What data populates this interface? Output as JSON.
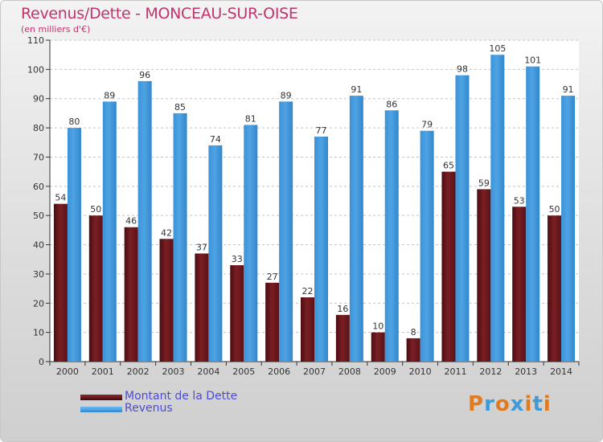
{
  "header": {
    "title": "Revenus/Dette - MONCEAU-SUR-OISE",
    "subtitle": "(en milliers d'€)"
  },
  "colors": {
    "dette": "#7a1f24",
    "revenus": "#4fa3e3",
    "title": "#c0336c",
    "legend_text": "#4b4bd6"
  },
  "legend": {
    "items": [
      {
        "label": "Montant de la Dette",
        "color": "#6b1a1f"
      },
      {
        "label": "Revenus",
        "color": "#4fa3e3"
      }
    ]
  },
  "logo": {
    "text": "Proxiti"
  },
  "chart_data": {
    "type": "bar",
    "categories": [
      "2000",
      "2001",
      "2002",
      "2003",
      "2004",
      "2005",
      "2006",
      "2007",
      "2008",
      "2009",
      "2010",
      "2011",
      "2012",
      "2013",
      "2014"
    ],
    "series": [
      {
        "name": "Montant de la Dette",
        "values": [
          54,
          50,
          46,
          42,
          37,
          33,
          27,
          22,
          16,
          10,
          8,
          65,
          59,
          53,
          50
        ]
      },
      {
        "name": "Revenus",
        "values": [
          80,
          89,
          96,
          85,
          74,
          81,
          89,
          77,
          91,
          86,
          79,
          98,
          105,
          101,
          91
        ]
      }
    ],
    "yticks": [
      0,
      10,
      20,
      30,
      40,
      50,
      60,
      70,
      80,
      90,
      100,
      110
    ],
    "ylim": [
      0,
      110
    ],
    "grid": true,
    "legend_position": "bottom-left"
  }
}
